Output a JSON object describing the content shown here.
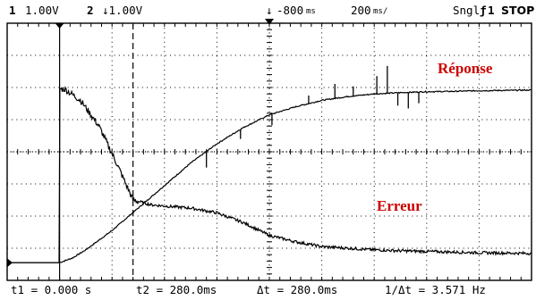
{
  "header": {
    "ch1_num": "1",
    "ch1_scale": "1.00V",
    "ch2_num": "2",
    "ch2_scale": "↓1.00V",
    "trigger_pos": "-800",
    "trigger_unit": "ms",
    "timebase": "200",
    "timebase_unit": "ms/",
    "mode": "Sngl",
    "trigger_source": "1",
    "run_state": "STOP"
  },
  "footer": {
    "t1": "t1 = 0.000 s",
    "t2": "t2 = 280.0ms",
    "dt": "Δt = 280.0ms",
    "inv_dt": "1/Δt = 3.571 Hz"
  },
  "labels": {
    "response": "Réponse",
    "error": "Erreur"
  },
  "colors": {
    "label": "#cc0000",
    "trace": "#000000",
    "background": "#ffffff"
  },
  "chart_data": {
    "type": "line",
    "series": [
      {
        "name": "Réponse",
        "t_ms": [
          -200,
          0,
          50,
          100,
          200,
          300,
          400,
          500,
          600,
          700,
          800,
          900,
          1000,
          1100,
          1200,
          1300,
          1400,
          1500,
          1600,
          1800
        ],
        "v_div": [
          -3.45,
          -3.45,
          -3.3,
          -3.05,
          -2.45,
          -1.75,
          -1.05,
          -0.35,
          0.25,
          0.75,
          1.15,
          1.4,
          1.6,
          1.72,
          1.8,
          1.84,
          1.87,
          1.88,
          1.9,
          1.92
        ]
      },
      {
        "name": "Erreur",
        "t_ms": [
          -200,
          -1,
          0,
          20,
          80,
          150,
          220,
          280,
          350,
          420,
          500,
          600,
          700,
          800,
          900,
          1000,
          1100,
          1200,
          1300,
          1400,
          1500,
          1600,
          1800
        ],
        "v_div": [
          -3.45,
          -3.45,
          1.95,
          1.95,
          1.6,
          0.8,
          -0.4,
          -1.5,
          -1.65,
          -1.7,
          -1.75,
          -1.9,
          -2.2,
          -2.6,
          -2.8,
          -2.95,
          -3.0,
          -3.05,
          -3.08,
          -3.1,
          -3.12,
          -3.14,
          -3.16
        ]
      }
    ],
    "cursors_ms": [
      0,
      280
    ]
  }
}
